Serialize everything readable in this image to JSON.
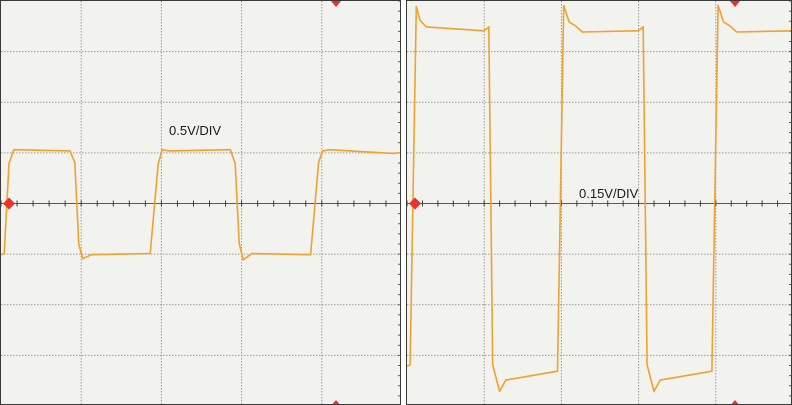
{
  "chart_data": [
    {
      "type": "line",
      "vertical_scale_label": "0.5V/DIV",
      "divisions": {
        "x": 5,
        "y": 8
      },
      "grid": true,
      "ylim": [
        -4,
        4
      ],
      "colors": {
        "trace": "#f0a12e",
        "marker": "#e8322a",
        "grid": "#9a9a9a",
        "background": "#f2f2ee"
      },
      "series": [
        {
          "x": [
            0,
            0.04,
            0.1,
            0.16,
            0.86,
            0.92,
            0.97,
            1.02,
            1.13,
            1.86,
            1.96,
            2.01,
            2.1,
            2.86,
            2.92,
            2.97,
            3.02,
            3.13,
            3.86,
            3.96,
            4.01,
            4.1,
            4.9,
            5.0
          ],
          "y": [
            -1.0,
            -1.0,
            0.8,
            1.05,
            1.05,
            0.8,
            -0.8,
            -1.1,
            -1.0,
            -1.0,
            0.8,
            1.05,
            1.05,
            1.05,
            0.8,
            -0.8,
            -1.1,
            -1.0,
            -1.0,
            0.8,
            1.05,
            1.05,
            1.0,
            1.0
          ]
        }
      ]
    },
    {
      "type": "line",
      "vertical_scale_label": "0.15V/DIV",
      "divisions": {
        "x": 5,
        "y": 8
      },
      "grid": true,
      "ylim": [
        -4,
        4
      ],
      "colors": {
        "trace": "#f0a12e",
        "marker": "#e8322a",
        "grid": "#9a9a9a",
        "background": "#f2f2ee"
      },
      "series": [
        {
          "x": [
            0,
            0.04,
            0.12,
            0.17,
            0.25,
            1.0,
            1.06,
            1.11,
            1.2,
            1.28,
            1.95,
            2.03,
            2.1,
            2.18,
            2.27,
            3.0,
            3.06,
            3.11,
            3.2,
            3.28,
            3.95,
            4.03,
            4.1,
            4.18,
            4.27,
            5.0
          ],
          "y": [
            -3.2,
            -3.2,
            3.9,
            3.6,
            3.5,
            3.4,
            3.5,
            -3.2,
            -3.7,
            -3.5,
            -3.3,
            3.9,
            3.6,
            3.5,
            3.4,
            3.4,
            3.5,
            -3.2,
            -3.7,
            -3.5,
            -3.3,
            3.9,
            3.6,
            3.5,
            3.4,
            3.4
          ]
        }
      ]
    }
  ]
}
